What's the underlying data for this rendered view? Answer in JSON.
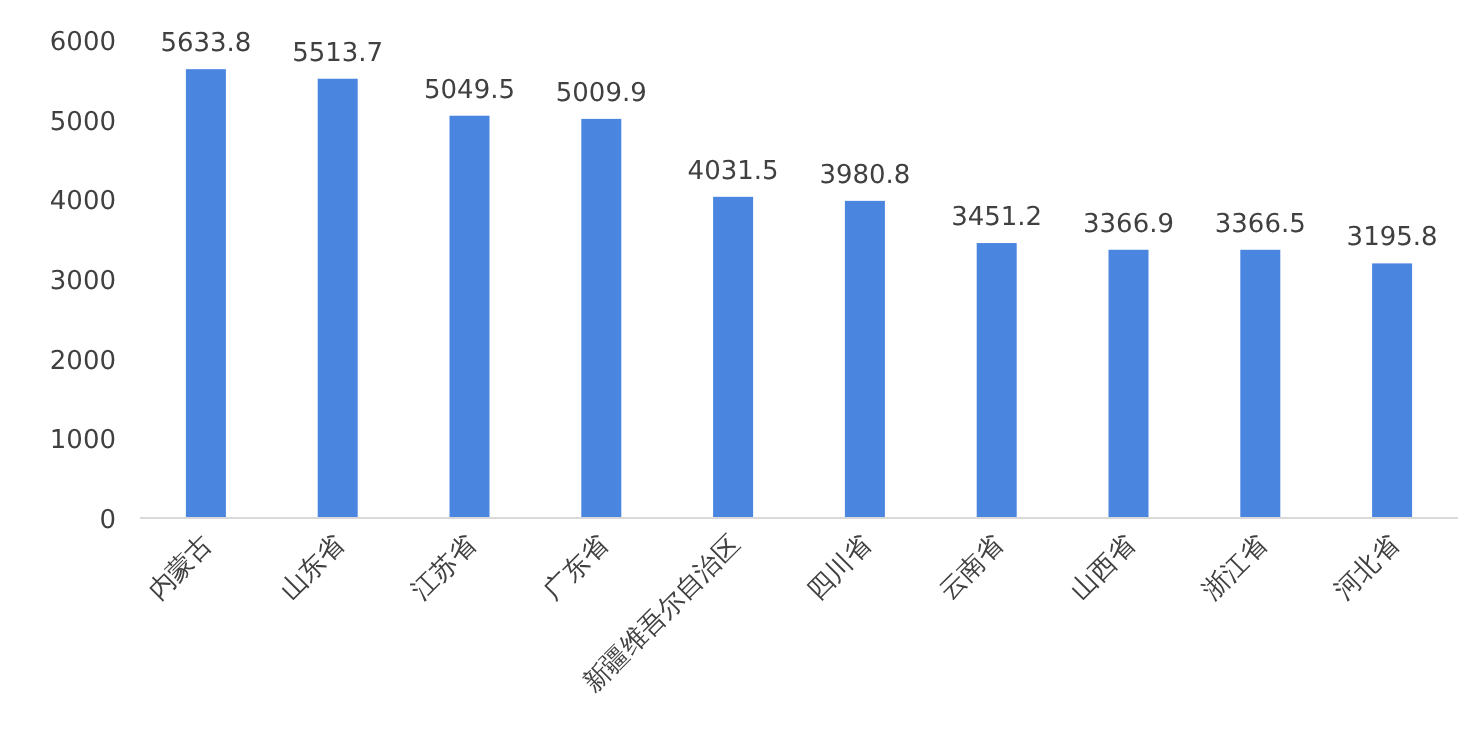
{
  "chart_data": {
    "type": "bar",
    "categories": [
      "内蒙古",
      "山东省",
      "江苏省",
      "广东省",
      "新疆维吾尔自治区",
      "四川省",
      "云南省",
      "山西省",
      "浙江省",
      "河北省"
    ],
    "values": [
      5633.8,
      5513.7,
      5049.5,
      5009.9,
      4031.5,
      3980.8,
      3451.2,
      3366.9,
      3366.5,
      3195.8
    ],
    "color": "#4a86e0",
    "ylim": [
      0,
      6000
    ],
    "yticks": [
      0,
      1000,
      2000,
      3000,
      4000,
      5000,
      6000
    ],
    "data_labels": true
  }
}
